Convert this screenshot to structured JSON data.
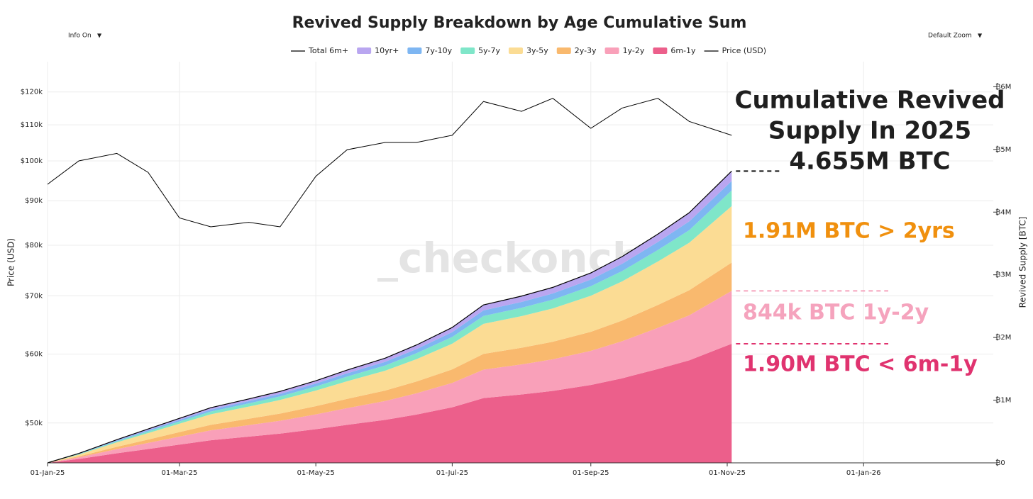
{
  "chart_data": {
    "type": "area",
    "title": "Revived Supply Breakdown by Age Cumulative Sum",
    "controls": [
      "Info On",
      "Default Zoom"
    ],
    "ylabel": "Price (USD)",
    "y2label": "Revived Supply [BTC]",
    "watermark": "_checkonchain",
    "log_y": true,
    "grid": true,
    "legend": "top",
    "x": [
      "2025-01-01",
      "2025-01-15",
      "2025-02-01",
      "2025-02-15",
      "2025-03-01",
      "2025-03-15",
      "2025-04-01",
      "2025-04-15",
      "2025-05-01",
      "2025-05-15",
      "2025-06-01",
      "2025-06-15",
      "2025-07-01",
      "2025-07-15",
      "2025-08-01",
      "2025-08-15",
      "2025-09-01",
      "2025-09-15",
      "2025-10-01",
      "2025-10-15",
      "2025-11-03"
    ],
    "xlim": [
      "2025-01-01",
      "2026-02-28"
    ],
    "xticks": [
      {
        "value": "2025-01-01",
        "label": "01-Jan-25"
      },
      {
        "value": "2025-03-01",
        "label": "01-Mar-25"
      },
      {
        "value": "2025-05-01",
        "label": "01-May-25"
      },
      {
        "value": "2025-07-01",
        "label": "01-Jul-25"
      },
      {
        "value": "2025-09-01",
        "label": "01-Sep-25"
      },
      {
        "value": "2025-11-01",
        "label": "01-Nov-25"
      },
      {
        "value": "2026-01-01",
        "label": "01-Jan-26"
      }
    ],
    "ylim": [
      45000,
      130000
    ],
    "yticks": [
      {
        "value": 50000,
        "label": "$50k"
      },
      {
        "value": 60000,
        "label": "$60k"
      },
      {
        "value": 70000,
        "label": "$70k"
      },
      {
        "value": 80000,
        "label": "$80k"
      },
      {
        "value": 90000,
        "label": "$90k"
      },
      {
        "value": 100000,
        "label": "$100k"
      },
      {
        "value": 110000,
        "label": "$110k"
      },
      {
        "value": 120000,
        "label": "$120k"
      }
    ],
    "y2lim": [
      0,
      6400000
    ],
    "y2ticks": [
      {
        "value": 0,
        "label": "₿0"
      },
      {
        "value": 1000000,
        "label": "₿1M"
      },
      {
        "value": 2000000,
        "label": "₿2M"
      },
      {
        "value": 3000000,
        "label": "₿3M"
      },
      {
        "value": 4000000,
        "label": "₿4M"
      },
      {
        "value": 5000000,
        "label": "₿5M"
      },
      {
        "value": 6000000,
        "label": "₿6M"
      }
    ],
    "series": [
      {
        "name": "Total 6m+",
        "kind": "line",
        "axis": "y2",
        "color": "#000000",
        "values": [
          0,
          150000,
          370000,
          540000,
          710000,
          880000,
          1020000,
          1140000,
          1310000,
          1480000,
          1670000,
          1880000,
          2160000,
          2520000,
          2660000,
          2800000,
          3030000,
          3290000,
          3650000,
          3990000,
          4655000
        ]
      },
      {
        "name": "10yr+",
        "kind": "area",
        "axis": "y2",
        "color": "#b9a6f0",
        "values": [
          0,
          5000,
          13000,
          19000,
          25000,
          31000,
          35000,
          40000,
          45000,
          52000,
          58000,
          66000,
          75000,
          88000,
          93000,
          98000,
          106000,
          115000,
          126000,
          139000,
          159000
        ]
      },
      {
        "name": "7y-10y",
        "kind": "area",
        "axis": "y2",
        "color": "#7eb6f2",
        "values": [
          0,
          5000,
          13000,
          19000,
          25000,
          31000,
          36000,
          40000,
          46000,
          52000,
          58000,
          66000,
          76000,
          88000,
          93000,
          98000,
          106000,
          115000,
          128000,
          140000,
          150000
        ]
      },
      {
        "name": "5y-7y",
        "kind": "area",
        "axis": "y2",
        "color": "#7fe6c9",
        "values": [
          0,
          8000,
          18000,
          27000,
          35000,
          44000,
          51000,
          57000,
          66000,
          74000,
          84000,
          94000,
          108000,
          126000,
          133000,
          140000,
          152000,
          165000,
          183000,
          200000,
          250000
        ]
      },
      {
        "name": "3y-5y",
        "kind": "area",
        "axis": "y2",
        "color": "#fbdc94",
        "values": [
          0,
          28000,
          70000,
          103000,
          135000,
          167000,
          194000,
          217000,
          249000,
          281000,
          317000,
          357000,
          410000,
          479000,
          505000,
          532000,
          576000,
          625000,
          694000,
          758000,
          900000
        ]
      },
      {
        "name": "2y-3y",
        "kind": "area",
        "axis": "y2",
        "color": "#f9b96e",
        "values": [
          0,
          15000,
          37000,
          54000,
          71000,
          88000,
          102000,
          114000,
          131000,
          148000,
          167000,
          188000,
          216000,
          252000,
          266000,
          280000,
          303000,
          329000,
          365000,
          399000,
          452000
        ]
      },
      {
        "name": "1y-2y",
        "kind": "area",
        "axis": "y2",
        "color": "#f9a0b9",
        "values": [
          0,
          27000,
          67000,
          97000,
          128000,
          158000,
          184000,
          205000,
          236000,
          266000,
          301000,
          338000,
          389000,
          454000,
          479000,
          504000,
          545000,
          592000,
          657000,
          718000,
          844000
        ]
      },
      {
        "name": "6m-1y",
        "kind": "area",
        "axis": "y2",
        "color": "#ec5f8b",
        "values": [
          0,
          62000,
          152000,
          221000,
          291000,
          361000,
          418000,
          467000,
          537000,
          607000,
          685000,
          771000,
          886000,
          1033000,
          1091000,
          1148000,
          1242000,
          1349000,
          1497000,
          1636000,
          1900000
        ]
      },
      {
        "name": "Price (USD)",
        "kind": "line",
        "axis": "y",
        "color": "#000000",
        "values": [
          94000,
          100000,
          102000,
          97000,
          86000,
          84000,
          85000,
          84000,
          96000,
          103000,
          105000,
          105000,
          107000,
          117000,
          114000,
          118000,
          109000,
          115000,
          118000,
          111000,
          107000
        ]
      }
    ],
    "annotations": [
      {
        "text": [
          "Cumulative Revived",
          "Supply In 2025",
          "4.655M BTC"
        ],
        "color": "#1f1f1f"
      },
      {
        "text": [
          "1.91M BTC > 2yrs"
        ],
        "color": "#f0900e"
      },
      {
        "text": [
          "844k BTC 1y-2y"
        ],
        "color": "#f5a3bd"
      },
      {
        "text": [
          "1.90M BTC < 6m-1y"
        ],
        "color": "#e0336f"
      }
    ]
  }
}
